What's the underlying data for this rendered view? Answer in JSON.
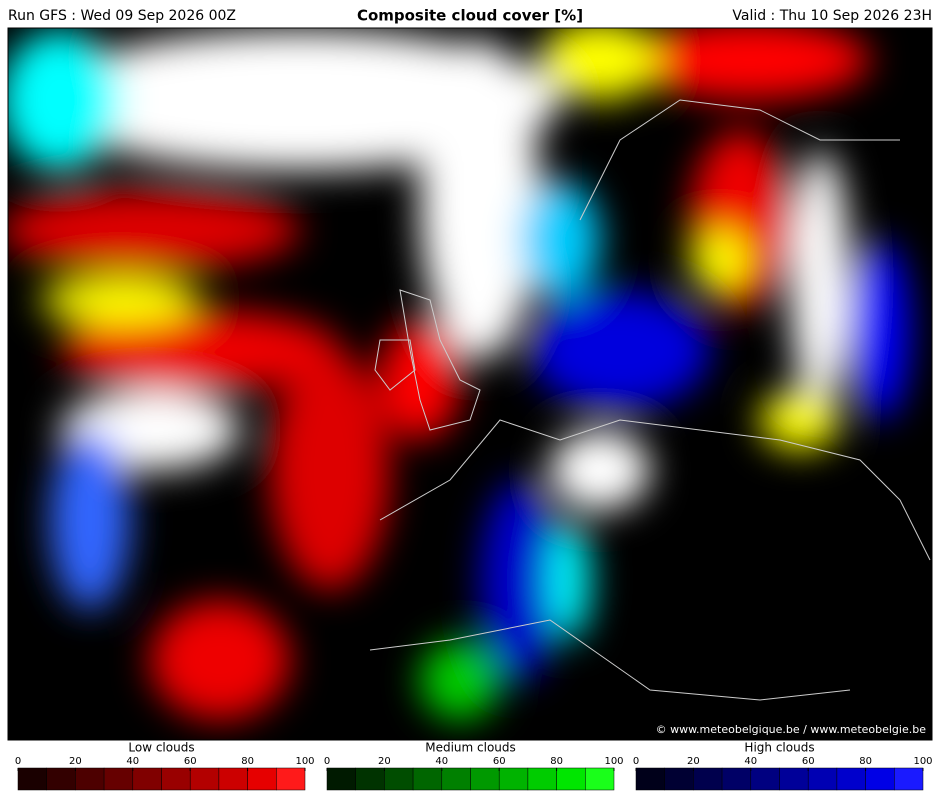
{
  "header": {
    "run": "Run GFS : Wed 09 Sep 2026 00Z",
    "title": "Composite cloud cover [%]",
    "valid": "Valid : Thu 10 Sep 2026 23H"
  },
  "credit": "© www.meteobelgique.be / www.meteobelgie.be",
  "legends": [
    {
      "title": "Low clouds",
      "ticks": [
        0,
        20,
        40,
        60,
        80,
        100
      ],
      "colors": [
        "#1a0000",
        "#330000",
        "#4d0000",
        "#660000",
        "#800000",
        "#990000",
        "#b30000",
        "#cc0000",
        "#e60000",
        "#ff1a1a"
      ]
    },
    {
      "title": "Medium clouds",
      "ticks": [
        0,
        20,
        40,
        60,
        80,
        100
      ],
      "colors": [
        "#001a00",
        "#003300",
        "#004d00",
        "#006600",
        "#008000",
        "#009900",
        "#00b300",
        "#00cc00",
        "#00e600",
        "#1aff1a"
      ]
    },
    {
      "title": "High clouds",
      "ticks": [
        0,
        20,
        40,
        60,
        80,
        100
      ],
      "colors": [
        "#00001a",
        "#000033",
        "#00004d",
        "#000066",
        "#000080",
        "#000099",
        "#0000b3",
        "#0000cc",
        "#0000e6",
        "#1a1aff"
      ]
    }
  ]
}
